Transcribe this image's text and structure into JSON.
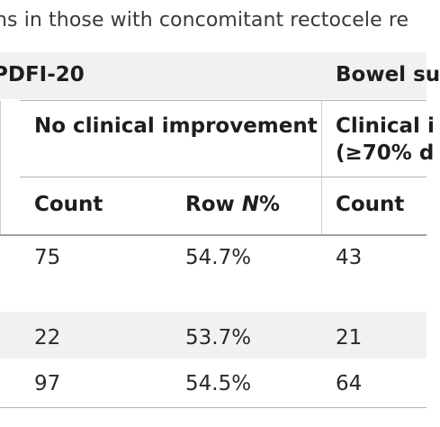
{
  "caption": "ns in those with concomitant rectocele re",
  "groups": [
    {
      "label": "PDFI-20"
    },
    {
      "label": "Bowel su"
    }
  ],
  "subgroups": [
    {
      "label": "No clinical improvement"
    },
    {
      "label_line1": "Clinical i",
      "label_line2": "(≥70% d"
    }
  ],
  "columns": [
    {
      "label": "Count"
    },
    {
      "label_prefix": "Row ",
      "label_italic": "N",
      "label_suffix": "%"
    },
    {
      "label": "Count"
    }
  ],
  "rows": [
    {
      "count": "75",
      "row_pct": "54.7%",
      "count2": "43"
    },
    {
      "count": "22",
      "row_pct": "53.7%",
      "count2": "21"
    },
    {
      "count": "97",
      "row_pct": "54.5%",
      "count2": "64"
    }
  ]
}
